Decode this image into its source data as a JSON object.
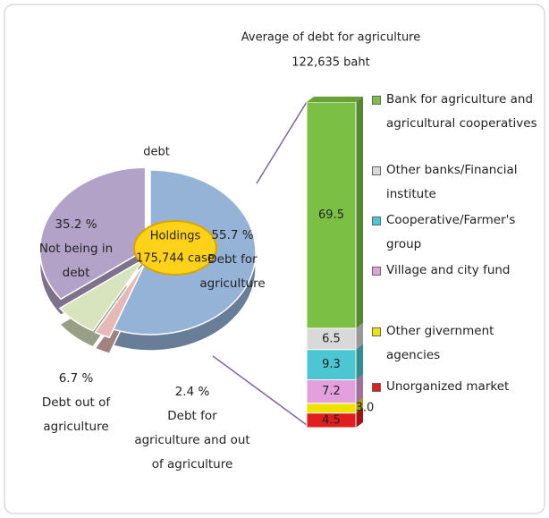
{
  "chart_data": [
    {
      "type": "pie",
      "annotations": [
        "debt"
      ],
      "center_label": [
        "Holdings",
        "175,744 case"
      ],
      "categories": [
        "Debt for agriculture",
        "Debt for agriculture and out of agriculture",
        "Debt out of agriculture",
        "Not being in debt"
      ],
      "values": [
        55.7,
        2.4,
        6.7,
        35.2
      ],
      "value_labels": [
        "55.7 %",
        "2.4 %",
        "6.7 %",
        "35.2 %"
      ],
      "colors": [
        "#95b3d7",
        "#e6b9b8",
        "#d7e4bd",
        "#b3a2c7"
      ]
    },
    {
      "type": "stacked_bar",
      "title": "Average of debt for agriculture",
      "subtitle": "122,635 baht",
      "legend": "right",
      "series": [
        {
          "name": "Bank for agriculture and agricultural cooperatives",
          "color": "#7cbf45",
          "values": [
            69.5
          ]
        },
        {
          "name": "Other banks/Financial institute",
          "color": "#d9d9d9",
          "values": [
            6.5
          ]
        },
        {
          "name": "Cooperative/Farmer's group",
          "color": "#4bc6d2",
          "values": [
            9.3
          ]
        },
        {
          "name": "Village and city fund",
          "color": "#e2a0dc",
          "values": [
            7.2
          ]
        },
        {
          "name": "Other givernment agencies",
          "color": "#f0e200",
          "values": [
            3.0
          ],
          "value_labels": [
            "3.0"
          ]
        },
        {
          "name": "Unorganized market",
          "color": "#e11e1e",
          "values": [
            4.5
          ]
        }
      ]
    }
  ]
}
